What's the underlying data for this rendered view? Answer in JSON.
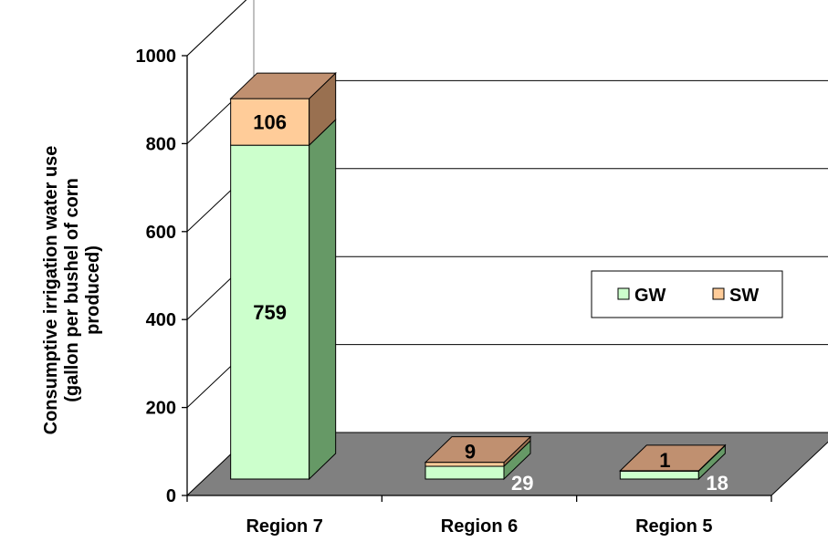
{
  "chart_data": {
    "type": "bar",
    "stacked": true,
    "three_d": true,
    "categories": [
      "Region 7",
      "Region 6",
      "Region 5"
    ],
    "series": [
      {
        "name": "GW",
        "values": [
          759,
          29,
          18
        ],
        "color": "#ccffcc"
      },
      {
        "name": "SW",
        "values": [
          106,
          9,
          1
        ],
        "color": "#ffcc99"
      }
    ],
    "data_labels": {
      "GW": [
        "759",
        "29",
        "18"
      ],
      "SW": [
        "106",
        "9",
        "1"
      ]
    },
    "ylabel_lines": [
      "Consumptive irrigation water use",
      "(gallon per bushel of corn",
      "produced)"
    ],
    "yticks": [
      "0",
      "200",
      "400",
      "600",
      "800",
      "1000"
    ],
    "ylim": [
      0,
      1000
    ],
    "grid": true,
    "legend": "center-right",
    "floor_color": "#808080"
  }
}
